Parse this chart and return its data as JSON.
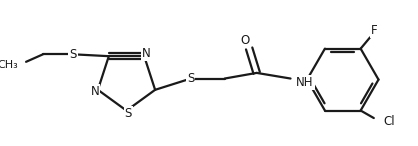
{
  "bg_color": "#ffffff",
  "line_color": "#1a1a1a",
  "line_width": 1.6,
  "font_size": 8.5,
  "figsize": [
    4.18,
    1.46
  ],
  "dpi": 100,
  "xlim": [
    0,
    418
  ],
  "ylim": [
    0,
    146
  ]
}
